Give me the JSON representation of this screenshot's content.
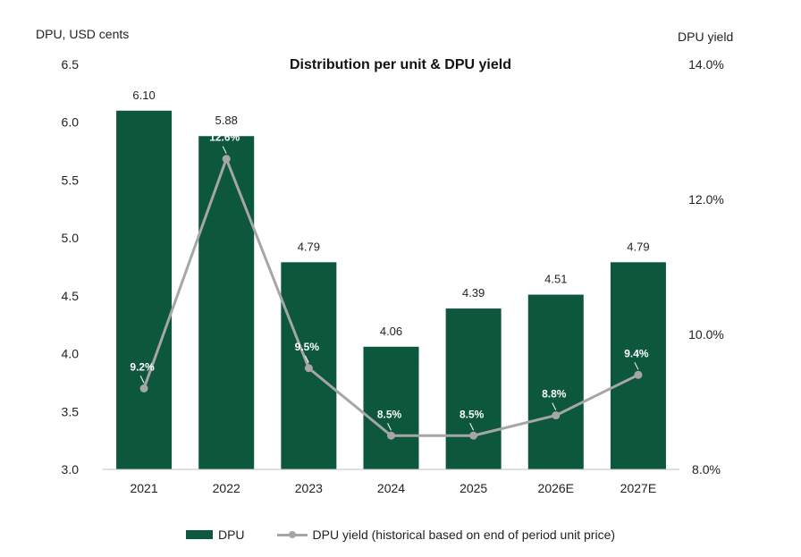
{
  "chart_data": {
    "type": "bar",
    "title": "Distribution per unit & DPU yield",
    "ylabel": "DPU, USD cents",
    "y2label": "DPU yield",
    "categories": [
      "2021",
      "2022",
      "2023",
      "2024",
      "2025",
      "2026E",
      "2027E"
    ],
    "ylim": [
      3.0,
      6.5
    ],
    "yticks": [
      "3.0",
      "3.5",
      "4.0",
      "4.5",
      "5.0",
      "5.5",
      "6.0",
      "6.5"
    ],
    "y2lim": [
      8.0,
      14.0
    ],
    "y2ticks": [
      "8.0%",
      "10.0%",
      "12.0%",
      "14.0%"
    ],
    "grid": false,
    "legend_position": "bottom",
    "series": [
      {
        "name": "DPU",
        "kind": "bar",
        "axis": "left",
        "color": "#0d573d",
        "values": [
          6.1,
          5.88,
          4.79,
          4.06,
          4.39,
          4.51,
          4.79
        ],
        "labels": [
          "6.10",
          "5.88",
          "4.79",
          "4.06",
          "4.39",
          "4.51",
          "4.79"
        ]
      },
      {
        "name": "DPU yield (historical based on end of period unit price)",
        "kind": "line",
        "axis": "right",
        "color": "#a6a6a6",
        "values": [
          9.2,
          12.6,
          9.5,
          8.5,
          8.5,
          8.8,
          9.4
        ],
        "labels": [
          "9.2%",
          "12.6%",
          "9.5%",
          "8.5%",
          "8.5%",
          "8.8%",
          "9.4%"
        ]
      }
    ]
  }
}
